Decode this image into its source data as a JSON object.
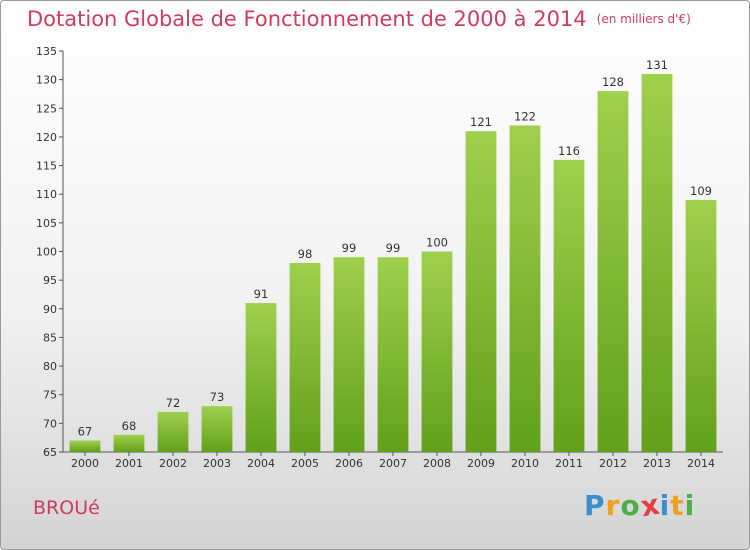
{
  "header": {
    "title": "Dotation Globale de Fonctionnement de 2000 à 2014",
    "subtitle": "(en milliers d'€)"
  },
  "footer": {
    "commune": "BROUé",
    "logo": {
      "letters": [
        "P",
        "r",
        "o",
        "x",
        "i",
        "t",
        "i"
      ],
      "colors": [
        "#3b8fd0",
        "#f0a020",
        "#4cb04a",
        "#e04040",
        "#3b8fd0",
        "#f0a020",
        "#4cb04a"
      ]
    }
  },
  "chart_data": {
    "type": "bar",
    "categories": [
      "2000",
      "2001",
      "2002",
      "2003",
      "2004",
      "2005",
      "2006",
      "2007",
      "2008",
      "2009",
      "2010",
      "2011",
      "2012",
      "2013",
      "2014"
    ],
    "values": [
      67,
      68,
      72,
      73,
      91,
      98,
      99,
      99,
      100,
      121,
      122,
      116,
      128,
      131,
      109
    ],
    "ylim": [
      65,
      135
    ],
    "yticks": [
      65,
      70,
      75,
      80,
      85,
      90,
      95,
      100,
      105,
      110,
      115,
      120,
      125,
      130,
      135
    ],
    "grid": false,
    "bar_color_top": "#9fd04e",
    "bar_color_bottom": "#62a01a"
  }
}
